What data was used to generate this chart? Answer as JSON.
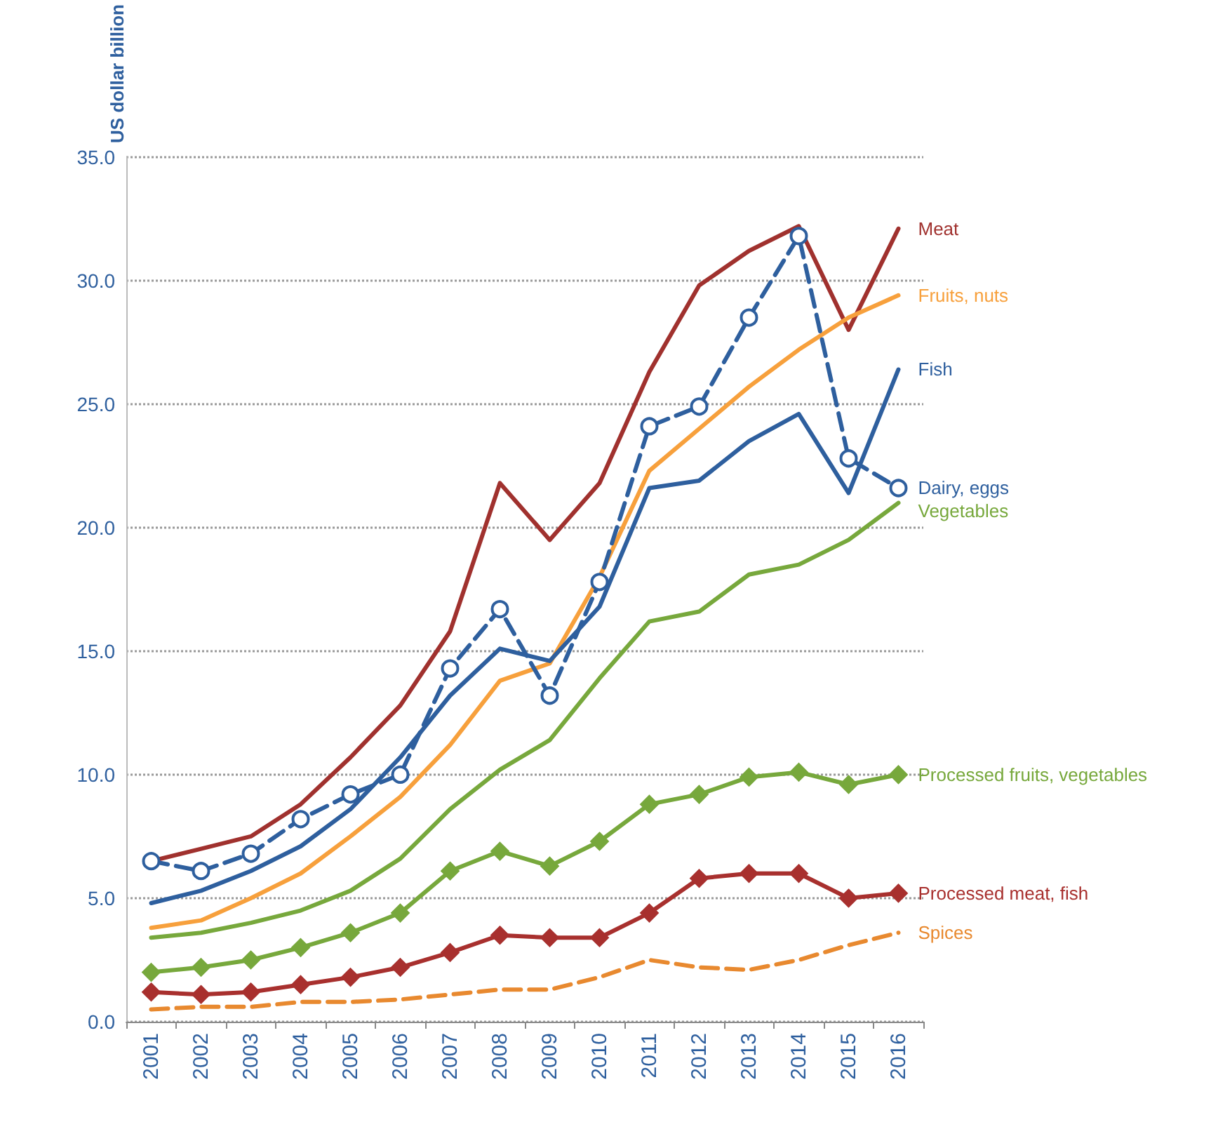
{
  "chart_data": {
    "type": "line",
    "ylabel": "US dollar billion",
    "categories": [
      "2001",
      "2002",
      "2003",
      "2004",
      "2005",
      "2006",
      "2007",
      "2008",
      "2009",
      "2010",
      "2011",
      "2012",
      "2013",
      "2014",
      "2015",
      "2016"
    ],
    "ylim": [
      0,
      35
    ],
    "yticks": [
      {
        "value": 0,
        "label": "0.0"
      },
      {
        "value": 5,
        "label": "5.0"
      },
      {
        "value": 10,
        "label": "10.0"
      },
      {
        "value": 15,
        "label": "15.0"
      },
      {
        "value": 20,
        "label": "20.0"
      },
      {
        "value": 25,
        "label": "25.0"
      },
      {
        "value": 30,
        "label": "30.0"
      },
      {
        "value": 35,
        "label": "35.0"
      }
    ],
    "grid": "y",
    "legend": false,
    "marker": "none",
    "line_style": "solid",
    "series": [
      {
        "name": "Meat",
        "color": "#a0312e",
        "values": [
          6.5,
          7.0,
          7.5,
          8.8,
          10.7,
          12.8,
          15.8,
          21.8,
          19.5,
          21.8,
          26.3,
          29.8,
          31.2,
          32.2,
          28.0,
          32.1
        ]
      },
      {
        "name": "Fruits, nuts",
        "color": "#f7a03c",
        "values": [
          3.8,
          4.1,
          5.0,
          6.0,
          7.5,
          9.1,
          11.2,
          13.8,
          14.5,
          18.0,
          22.3,
          24.0,
          25.7,
          27.2,
          28.5,
          29.4
        ]
      },
      {
        "name": "Fish",
        "color": "#2e5f9e",
        "values": [
          4.8,
          5.3,
          6.1,
          7.1,
          8.6,
          10.7,
          13.2,
          15.1,
          14.6,
          16.8,
          21.6,
          21.9,
          23.5,
          24.6,
          21.4,
          26.4
        ]
      },
      {
        "name": "Dairy, eggs",
        "color": "#2e5f9e",
        "marker": "circle",
        "line_style": "dashed",
        "values": [
          6.5,
          6.1,
          6.8,
          8.2,
          9.2,
          10.0,
          14.3,
          16.7,
          13.2,
          17.8,
          24.1,
          24.9,
          28.5,
          31.8,
          22.8,
          21.6
        ]
      },
      {
        "name": "Vegetables",
        "color": "#77a83c",
        "values": [
          3.4,
          3.6,
          4.0,
          4.5,
          5.3,
          6.6,
          8.6,
          10.2,
          11.4,
          13.9,
          16.2,
          16.6,
          18.1,
          18.5,
          19.5,
          21.0
        ]
      },
      {
        "name": "Processed fruits, vegetables",
        "color": "#77a83c",
        "marker": "diamond",
        "values": [
          2.0,
          2.2,
          2.5,
          3.0,
          3.6,
          4.4,
          6.1,
          6.9,
          6.3,
          7.3,
          8.8,
          9.2,
          9.9,
          10.1,
          9.6,
          10.0
        ]
      },
      {
        "name": "Processed meat, fish",
        "color": "#a8302e",
        "marker": "diamond",
        "values": [
          1.2,
          1.1,
          1.2,
          1.5,
          1.8,
          2.2,
          2.8,
          3.5,
          3.4,
          3.4,
          4.4,
          5.8,
          6.0,
          6.0,
          5.0,
          5.2
        ]
      },
      {
        "name": "Spices",
        "color": "#e8892f",
        "line_style": "dashed",
        "values": [
          0.5,
          0.6,
          0.6,
          0.8,
          0.8,
          0.9,
          1.1,
          1.3,
          1.3,
          1.8,
          2.5,
          2.2,
          2.1,
          2.5,
          3.1,
          3.6
        ]
      }
    ]
  }
}
